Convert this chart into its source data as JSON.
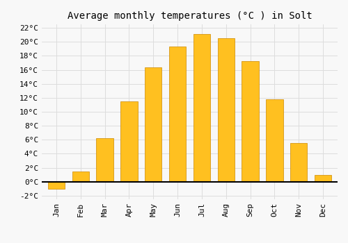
{
  "months": [
    "Jan",
    "Feb",
    "Mar",
    "Apr",
    "May",
    "Jun",
    "Jul",
    "Aug",
    "Sep",
    "Oct",
    "Nov",
    "Dec"
  ],
  "temperatures": [
    -1.0,
    1.5,
    6.2,
    11.5,
    16.3,
    19.3,
    21.1,
    20.5,
    17.2,
    11.8,
    5.5,
    1.0
  ],
  "bar_color": "#FFC020",
  "bar_edge_color": "#CC8800",
  "title": "Average monthly temperatures (°C ) in Solt",
  "ylim": [
    -2.5,
    22.5
  ],
  "yticks": [
    -2,
    0,
    2,
    4,
    6,
    8,
    10,
    12,
    14,
    16,
    18,
    20,
    22
  ],
  "ytick_labels": [
    "-2°C",
    "0°C",
    "2°C",
    "4°C",
    "6°C",
    "8°C",
    "10°C",
    "12°C",
    "14°C",
    "16°C",
    "18°C",
    "20°C",
    "22°C"
  ],
  "background_color": "#f8f8f8",
  "grid_color": "#dddddd",
  "title_fontsize": 10,
  "tick_fontsize": 8,
  "bar_width": 0.7
}
